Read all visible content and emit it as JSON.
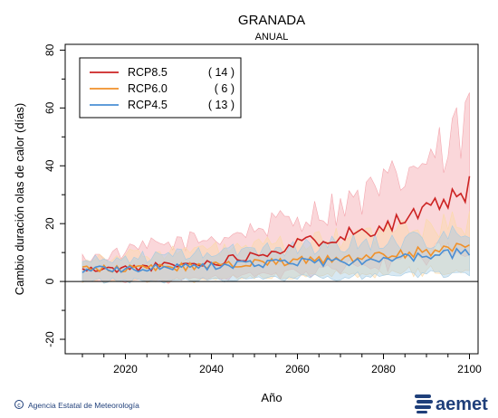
{
  "chart_data": {
    "type": "line",
    "title": "GRANADA",
    "subtitle": "ANUAL",
    "xlabel": "Año",
    "ylabel": "Cambio duración olas de calor (días)",
    "xlim": [
      2006,
      2102
    ],
    "ylim": [
      -25,
      82
    ],
    "xticks": [
      2020,
      2040,
      2060,
      2080,
      2100
    ],
    "yticks": [
      -20,
      0,
      20,
      40,
      60,
      80
    ],
    "zero_line": true,
    "grid": false,
    "legend_position": "top-left",
    "series": [
      {
        "name": "RCP8.5",
        "count": "( 14 )",
        "color": "#cc2222",
        "band_color": "#f4a6ae",
        "key_points": [
          [
            2010,
            4
          ],
          [
            2015,
            4
          ],
          [
            2020,
            4.5
          ],
          [
            2025,
            5
          ],
          [
            2030,
            5.5
          ],
          [
            2035,
            6
          ],
          [
            2040,
            6.5
          ],
          [
            2045,
            8
          ],
          [
            2050,
            9.5
          ],
          [
            2055,
            11
          ],
          [
            2060,
            13
          ],
          [
            2065,
            14.5
          ],
          [
            2070,
            16
          ],
          [
            2075,
            17.5
          ],
          [
            2080,
            19.5
          ],
          [
            2085,
            21.5
          ],
          [
            2090,
            24
          ],
          [
            2095,
            28
          ],
          [
            2099,
            29
          ],
          [
            2100,
            35
          ]
        ],
        "band_low": [
          [
            2010,
            1
          ],
          [
            2020,
            1
          ],
          [
            2030,
            1
          ],
          [
            2040,
            2
          ],
          [
            2050,
            3
          ],
          [
            2060,
            4
          ],
          [
            2070,
            5
          ],
          [
            2080,
            7
          ],
          [
            2090,
            10
          ],
          [
            2100,
            12
          ]
        ],
        "band_high": [
          [
            2010,
            8
          ],
          [
            2020,
            10
          ],
          [
            2025,
            12
          ],
          [
            2030,
            13
          ],
          [
            2040,
            15
          ],
          [
            2050,
            18
          ],
          [
            2060,
            22
          ],
          [
            2070,
            26
          ],
          [
            2080,
            32
          ],
          [
            2090,
            42
          ],
          [
            2095,
            44
          ],
          [
            2100,
            57
          ]
        ]
      },
      {
        "name": "RCP6.0",
        "count": "(   6 )",
        "color": "#f0912a",
        "band_color": "#fbd9a8",
        "key_points": [
          [
            2010,
            4
          ],
          [
            2020,
            4.5
          ],
          [
            2030,
            5
          ],
          [
            2040,
            5.5
          ],
          [
            2050,
            6.5
          ],
          [
            2060,
            7
          ],
          [
            2070,
            8
          ],
          [
            2080,
            9
          ],
          [
            2090,
            10.5
          ],
          [
            2100,
            12
          ]
        ],
        "band_low": [
          [
            2010,
            1
          ],
          [
            2020,
            1
          ],
          [
            2030,
            1
          ],
          [
            2040,
            1.5
          ],
          [
            2050,
            2
          ],
          [
            2060,
            2.5
          ],
          [
            2070,
            3
          ],
          [
            2080,
            3.5
          ],
          [
            2090,
            4.5
          ],
          [
            2100,
            5
          ]
        ],
        "band_high": [
          [
            2010,
            8
          ],
          [
            2020,
            9
          ],
          [
            2030,
            10
          ],
          [
            2040,
            11
          ],
          [
            2050,
            12
          ],
          [
            2060,
            13
          ],
          [
            2070,
            15
          ],
          [
            2080,
            17
          ],
          [
            2090,
            19
          ],
          [
            2100,
            20
          ]
        ]
      },
      {
        "name": "RCP4.5",
        "count": "( 13 )",
        "color": "#4a8fd4",
        "band_color": "#a6cbe3",
        "key_points": [
          [
            2010,
            4
          ],
          [
            2020,
            4.5
          ],
          [
            2030,
            5
          ],
          [
            2040,
            5.5
          ],
          [
            2050,
            6
          ],
          [
            2060,
            6.5
          ],
          [
            2070,
            7
          ],
          [
            2080,
            7.5
          ],
          [
            2090,
            8.5
          ],
          [
            2100,
            10
          ]
        ],
        "band_low": [
          [
            2010,
            1
          ],
          [
            2020,
            1
          ],
          [
            2030,
            1
          ],
          [
            2040,
            1.5
          ],
          [
            2050,
            1.5
          ],
          [
            2060,
            2
          ],
          [
            2070,
            2.5
          ],
          [
            2080,
            3
          ],
          [
            2090,
            3.5
          ],
          [
            2100,
            4
          ]
        ],
        "band_high": [
          [
            2010,
            7
          ],
          [
            2020,
            8
          ],
          [
            2030,
            9
          ],
          [
            2040,
            10
          ],
          [
            2050,
            11
          ],
          [
            2060,
            12
          ],
          [
            2070,
            13
          ],
          [
            2080,
            14
          ],
          [
            2090,
            15
          ],
          [
            2100,
            16
          ]
        ]
      }
    ]
  },
  "footer": {
    "credit": "Agencia Estatal de Meteorología",
    "logo_text": "aemet"
  }
}
